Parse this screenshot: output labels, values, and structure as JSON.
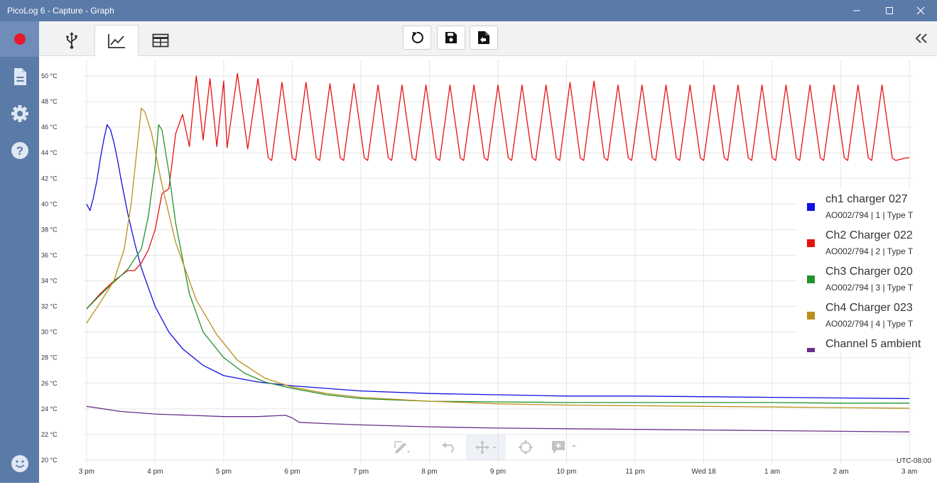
{
  "window": {
    "title": "PicoLog 6 - Capture - Graph",
    "controls": [
      "minimize-icon",
      "maximize-icon",
      "close-icon"
    ]
  },
  "sidebar": {
    "items": [
      {
        "name": "record",
        "icon": "record-icon",
        "active": true
      },
      {
        "name": "file",
        "icon": "document-icon"
      },
      {
        "name": "settings",
        "icon": "gear-icon"
      },
      {
        "name": "help",
        "icon": "help-icon"
      },
      {
        "name": "feedback",
        "icon": "smiley-icon"
      }
    ]
  },
  "toolbar": {
    "tabs": [
      {
        "name": "devices",
        "icon": "usb-icon"
      },
      {
        "name": "graph",
        "icon": "line-chart-icon",
        "active": true
      },
      {
        "name": "table",
        "icon": "table-icon"
      }
    ],
    "buttons": [
      {
        "name": "reset",
        "icon": "reset-icon"
      },
      {
        "name": "save",
        "icon": "save-icon"
      },
      {
        "name": "export",
        "icon": "export-icon"
      }
    ],
    "collapse_icon": "double-chevron-left-icon"
  },
  "graph_tools": [
    "annotate-icon",
    "undo-icon",
    "pan-icon",
    "crosshair-icon",
    "add-note-icon"
  ],
  "timezone": "UTC-08:00",
  "colors": {
    "chrome": "#5a7aa8",
    "record": "#e8192c",
    "ch1": "#1010e0",
    "ch2": "#e81010",
    "ch3": "#23912d",
    "ch4": "#b8901a",
    "ch5": "#6a2e8a"
  },
  "legend": [
    {
      "name": "ch1 charger 027",
      "sub": "AO002/794 | 1 | Type T",
      "color": "#1010e0"
    },
    {
      "name": "Ch2 Charger 022",
      "sub": "AO002/794 | 2 | Type T",
      "color": "#e81010"
    },
    {
      "name": "Ch3 Charger 020",
      "sub": "AO002/794 | 3 | Type T",
      "color": "#23912d"
    },
    {
      "name": "Ch4 Charger 023",
      "sub": "AO002/794 | 4 | Type T",
      "color": "#b8901a"
    },
    {
      "name": "Channel 5 ambient",
      "sub": "",
      "color": "#6a2e8a"
    }
  ],
  "chart_data": {
    "type": "line",
    "x_unit": "hours since 3 pm",
    "xlim": [
      -0.05,
      12.05
    ],
    "ylim": [
      20,
      51
    ],
    "x_ticks": [
      "3 pm",
      "4 pm",
      "5 pm",
      "6 pm",
      "7 pm",
      "8 pm",
      "9 pm",
      "10 pm",
      "11 pm",
      "Wed 18",
      "1 am",
      "2 am",
      "3 am"
    ],
    "y_ticks": [
      "20 °C",
      "22 °C",
      "24 °C",
      "26 °C",
      "28 °C",
      "30 °C",
      "32 °C",
      "34 °C",
      "36 °C",
      "38 °C",
      "40 °C",
      "42 °C",
      "44 °C",
      "46 °C",
      "48 °C",
      "50 °C"
    ],
    "y_tick_values": [
      20,
      22,
      24,
      26,
      28,
      30,
      32,
      34,
      36,
      38,
      40,
      42,
      44,
      46,
      48,
      50
    ],
    "grid": true,
    "series": [
      {
        "name": "ch1 charger 027",
        "color": "#1010e0",
        "x": [
          0,
          0.05,
          0.1,
          0.15,
          0.2,
          0.25,
          0.3,
          0.35,
          0.4,
          0.45,
          0.5,
          0.6,
          0.7,
          0.8,
          0.9,
          1.0,
          1.2,
          1.4,
          1.7,
          2.0,
          2.5,
          3.0,
          4.0,
          5.0,
          6.0,
          7.0,
          8.0,
          9.0,
          10.0,
          11.0,
          12.0
        ],
        "y": [
          40.0,
          39.5,
          40.5,
          41.8,
          43.5,
          45.0,
          46.2,
          45.8,
          44.8,
          43.5,
          42.0,
          39.3,
          37.0,
          35.0,
          33.5,
          32.0,
          30.0,
          28.7,
          27.4,
          26.6,
          26.1,
          25.8,
          25.4,
          25.2,
          25.1,
          25.0,
          25.0,
          24.95,
          24.9,
          24.85,
          24.8
        ]
      },
      {
        "name": "Ch2 Charger 022",
        "color": "#e81010",
        "x": [
          0,
          0.2,
          0.4,
          0.6,
          0.7,
          0.8,
          0.9,
          1.0,
          1.1,
          1.2,
          1.3,
          1.4,
          1.5,
          1.6,
          1.7,
          1.8,
          1.9,
          2.0,
          2.05,
          2.2,
          2.35,
          2.5,
          2.65,
          2.7,
          2.85,
          3.0,
          3.05,
          3.2,
          3.35,
          3.4,
          3.55,
          3.7,
          3.75,
          3.9,
          4.05,
          4.1,
          4.25,
          4.4,
          4.45,
          4.6,
          4.75,
          4.8,
          4.95,
          5.1,
          5.15,
          5.3,
          5.45,
          5.5,
          5.65,
          5.8,
          5.85,
          6.0,
          6.15,
          6.2,
          6.35,
          6.5,
          6.55,
          6.7,
          6.85,
          6.9,
          7.05,
          7.2,
          7.25,
          7.4,
          7.55,
          7.6,
          7.75,
          7.9,
          7.95,
          8.1,
          8.25,
          8.3,
          8.45,
          8.6,
          8.65,
          8.8,
          8.95,
          9.0,
          9.15,
          9.3,
          9.35,
          9.5,
          9.65,
          9.7,
          9.85,
          10.0,
          10.05,
          10.2,
          10.35,
          10.4,
          10.55,
          10.7,
          10.75,
          10.9,
          11.05,
          11.1,
          11.25,
          11.4,
          11.45,
          11.6,
          11.75,
          11.8,
          11.95,
          12.0
        ],
        "y": [
          31.8,
          33.0,
          34.0,
          34.8,
          34.8,
          35.4,
          36.4,
          38.0,
          40.8,
          41.2,
          45.5,
          47.0,
          44.5,
          50.0,
          45.0,
          49.8,
          44.5,
          49.6,
          44.4,
          50.2,
          44.3,
          49.8,
          43.6,
          43.4,
          49.5,
          43.6,
          43.4,
          49.5,
          43.6,
          43.4,
          49.4,
          43.6,
          43.4,
          49.4,
          43.6,
          43.4,
          49.3,
          43.6,
          43.4,
          49.3,
          43.6,
          43.4,
          49.3,
          43.6,
          43.4,
          49.3,
          43.6,
          43.4,
          49.3,
          43.6,
          43.4,
          49.3,
          43.6,
          43.4,
          49.3,
          43.6,
          43.4,
          49.3,
          43.6,
          43.4,
          49.5,
          43.6,
          43.4,
          49.6,
          43.6,
          43.4,
          49.3,
          43.6,
          43.4,
          49.3,
          43.6,
          43.4,
          49.3,
          43.6,
          43.4,
          49.3,
          43.6,
          43.4,
          49.3,
          43.6,
          43.4,
          49.3,
          43.6,
          43.4,
          49.3,
          43.6,
          43.4,
          49.3,
          43.6,
          43.4,
          49.3,
          43.6,
          43.4,
          49.3,
          43.6,
          43.4,
          49.3,
          43.6,
          43.4,
          49.3,
          43.6,
          43.4,
          43.6,
          43.6
        ]
      },
      {
        "name": "Ch3 Charger 020",
        "color": "#23912d",
        "x": [
          0,
          0.2,
          0.4,
          0.6,
          0.8,
          0.9,
          1.0,
          1.05,
          1.1,
          1.2,
          1.3,
          1.5,
          1.7,
          2.0,
          2.3,
          2.6,
          3.0,
          3.5,
          4.0,
          5.0,
          6.0,
          7.0,
          8.0,
          9.0,
          10.0,
          11.0,
          12.0
        ],
        "y": [
          31.8,
          32.9,
          33.9,
          34.9,
          36.5,
          39.0,
          43.0,
          46.2,
          45.8,
          42.5,
          38.5,
          33.0,
          30.0,
          28.0,
          26.8,
          26.1,
          25.6,
          25.1,
          24.8,
          24.6,
          24.55,
          24.5,
          24.5,
          24.5,
          24.5,
          24.45,
          24.45
        ]
      },
      {
        "name": "Ch4 Charger 023",
        "color": "#b8901a",
        "x": [
          0,
          0.2,
          0.4,
          0.55,
          0.65,
          0.75,
          0.8,
          0.85,
          0.95,
          1.1,
          1.3,
          1.6,
          1.9,
          2.2,
          2.6,
          3.0,
          3.5,
          4.0,
          5.0,
          6.0,
          7.0,
          8.0,
          9.0,
          10.0,
          11.0,
          12.0
        ],
        "y": [
          30.7,
          32.3,
          34.0,
          36.5,
          40.0,
          45.0,
          47.5,
          47.2,
          45.5,
          41.5,
          37.0,
          32.5,
          29.8,
          27.8,
          26.4,
          25.7,
          25.2,
          24.9,
          24.6,
          24.4,
          24.3,
          24.25,
          24.2,
          24.15,
          24.1,
          24.05
        ]
      },
      {
        "name": "Channel 5 ambient",
        "color": "#6a2e8a",
        "x": [
          0,
          0.5,
          1.0,
          1.5,
          2.0,
          2.5,
          2.9,
          3.0,
          3.1,
          3.5,
          4.0,
          5.0,
          6.0,
          7.0,
          8.0,
          9.0,
          10.0,
          11.0,
          12.0
        ],
        "y": [
          24.2,
          23.8,
          23.6,
          23.5,
          23.4,
          23.4,
          23.5,
          23.3,
          22.95,
          22.85,
          22.75,
          22.6,
          22.5,
          22.45,
          22.4,
          22.35,
          22.3,
          22.25,
          22.2
        ]
      }
    ]
  }
}
